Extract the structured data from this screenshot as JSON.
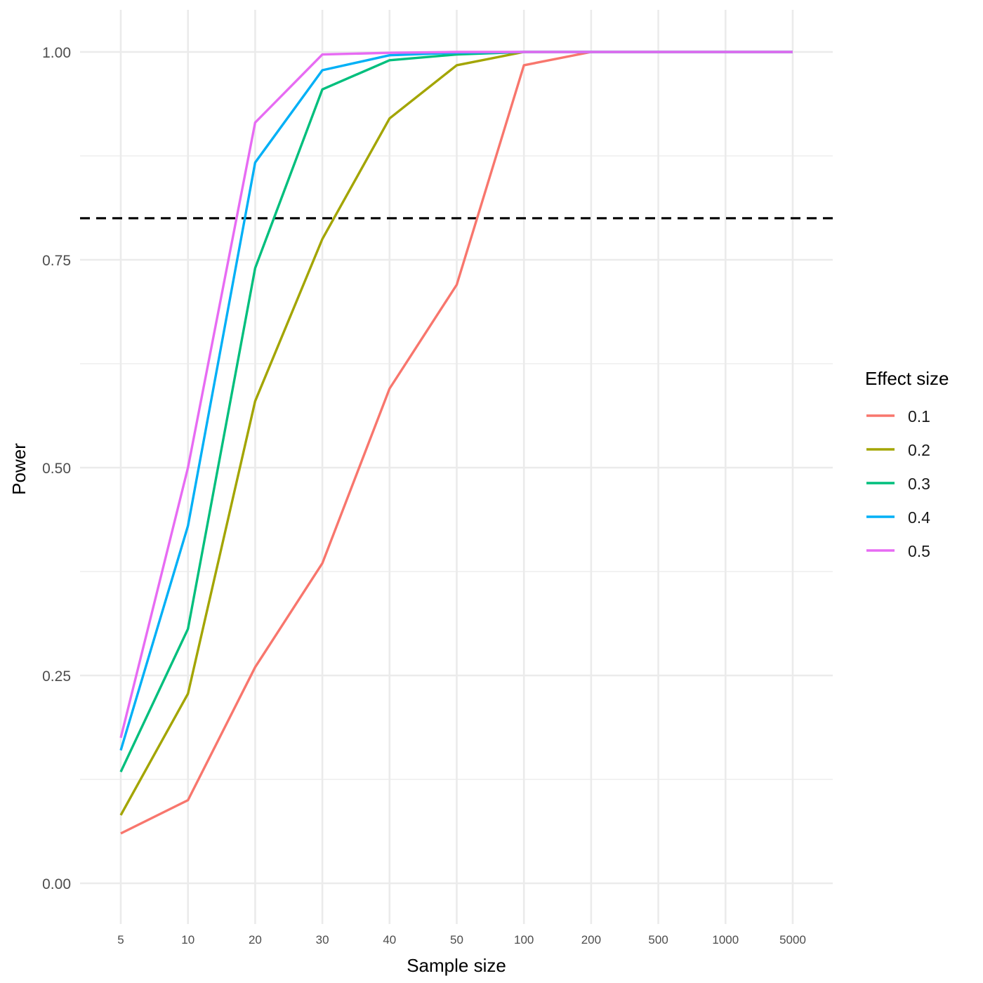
{
  "chart_data": {
    "type": "line",
    "xlabel": "Sample size",
    "ylabel": "Power",
    "categories": [
      "5",
      "10",
      "20",
      "30",
      "40",
      "50",
      "100",
      "200",
      "500",
      "1000",
      "5000"
    ],
    "ylim": [
      -0.035,
      1.05
    ],
    "y_ticks": [
      0,
      0.25,
      0.5,
      0.75,
      1.0
    ],
    "y_tick_labels": [
      "0.00",
      "0.25",
      "0.50",
      "0.75",
      "1.00"
    ],
    "grid": true,
    "reference_line": {
      "y": 0.8,
      "style": "dashed",
      "color": "#000000"
    },
    "legend": {
      "title": "Effect size",
      "position": "right"
    },
    "series": [
      {
        "name": "0.1",
        "color": "#F8766D",
        "values": [
          0.06,
          0.1,
          0.26,
          0.385,
          0.595,
          0.72,
          0.984,
          1.0,
          1.0,
          1.0,
          1.0
        ]
      },
      {
        "name": "0.2",
        "color": "#A3A500",
        "values": [
          0.082,
          0.228,
          0.58,
          0.775,
          0.92,
          0.984,
          1.0,
          1.0,
          1.0,
          1.0,
          1.0
        ]
      },
      {
        "name": "0.3",
        "color": "#00BF7D",
        "values": [
          0.134,
          0.306,
          0.74,
          0.955,
          0.99,
          0.997,
          1.0,
          1.0,
          1.0,
          1.0,
          1.0
        ]
      },
      {
        "name": "0.4",
        "color": "#00B0F6",
        "values": [
          0.16,
          0.43,
          0.867,
          0.978,
          0.996,
          0.999,
          1.0,
          1.0,
          1.0,
          1.0,
          1.0
        ]
      },
      {
        "name": "0.5",
        "color": "#E76BF3",
        "values": [
          0.175,
          0.5,
          0.915,
          0.997,
          0.999,
          1.0,
          1.0,
          1.0,
          1.0,
          1.0,
          1.0
        ]
      }
    ]
  }
}
